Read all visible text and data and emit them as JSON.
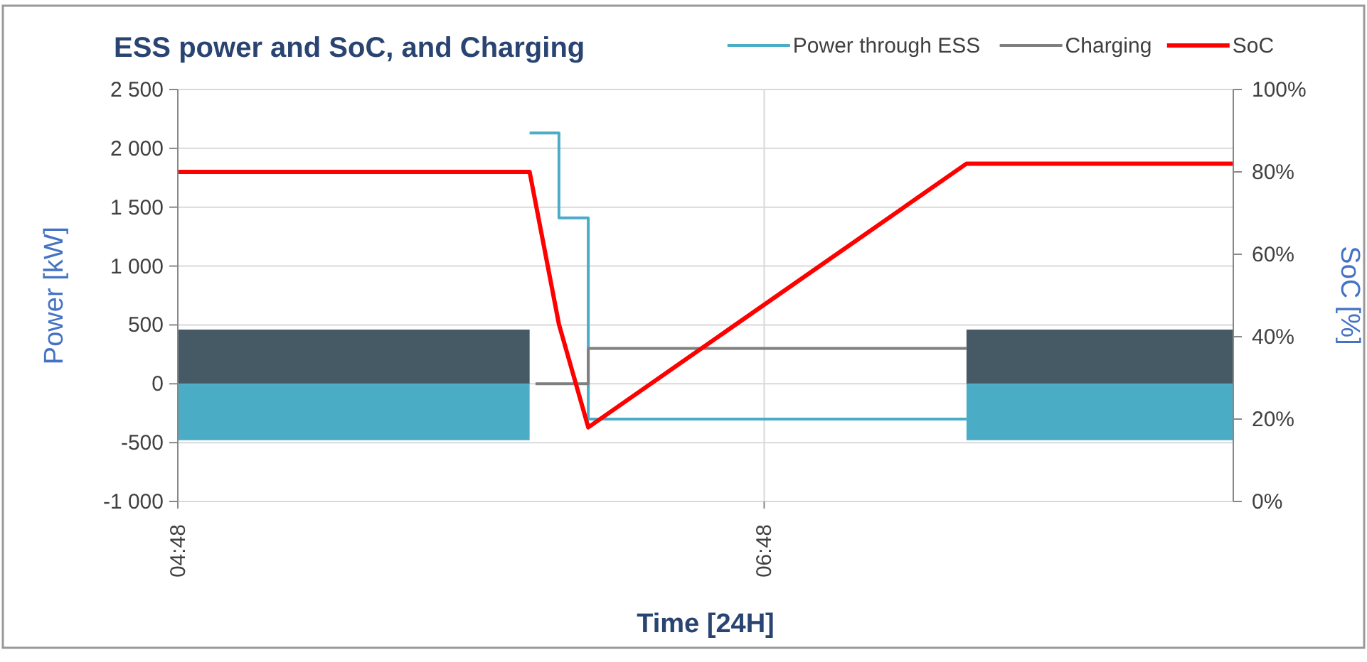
{
  "chart_data": {
    "type": "line",
    "title": "ESS power and SoC, and Charging",
    "xlabel": "Time [24H]",
    "ylabel": "Power [kW]",
    "y2label": "SoC [%]",
    "xlim": [
      4.8,
      8.4
    ],
    "xticks": [
      {
        "value": 4.8,
        "label": "04:48"
      },
      {
        "value": 6.8,
        "label": "06:48"
      }
    ],
    "ylim": [
      -1000,
      2500
    ],
    "yticks": [
      {
        "value": -1000,
        "label": "-1 000"
      },
      {
        "value": -500,
        "label": "-500"
      },
      0,
      500,
      {
        "value": 1000,
        "label": "1 000"
      },
      {
        "value": 1500,
        "label": "1 500"
      },
      {
        "value": 2000,
        "label": "2 000"
      },
      {
        "value": 2500,
        "label": "2 500"
      }
    ],
    "y2lim": [
      0,
      100
    ],
    "y2ticks": [
      {
        "value": 0,
        "label": "0%"
      },
      {
        "value": 20,
        "label": "20%"
      },
      {
        "value": 40,
        "label": "40%"
      },
      {
        "value": 60,
        "label": "60%"
      },
      {
        "value": 80,
        "label": "80%"
      },
      {
        "value": 100,
        "label": "100%"
      }
    ],
    "grid": true,
    "legend": "top right",
    "series": [
      {
        "type": "area",
        "color": "#455a64",
        "x": [
          4.8,
          6.0
        ],
        "values": [
          460,
          460
        ]
      },
      {
        "type": "area",
        "color": "#455a64",
        "x": [
          7.49,
          8.4
        ],
        "values": [
          460,
          460
        ]
      },
      {
        "type": "area",
        "color": "#4bacc6",
        "x": [
          4.8,
          6.0
        ],
        "values": [
          -480,
          -480
        ]
      },
      {
        "type": "area",
        "color": "#4bacc6",
        "x": [
          7.49,
          8.4
        ],
        "values": [
          -480,
          -480
        ]
      },
      {
        "name": "Power through ESS",
        "type": "step",
        "color": "#4bacc6",
        "x": [
          6.0,
          6.1,
          6.2,
          7.49
        ],
        "values": [
          2130,
          1410,
          -300,
          -300
        ]
      },
      {
        "name": "Charging",
        "type": "step",
        "color": "#7f7f7f",
        "x": [
          6.02,
          6.2,
          7.49
        ],
        "values": [
          0,
          300,
          300
        ]
      },
      {
        "name": "SoC",
        "axis": "y2",
        "color": "#ff0000",
        "x": [
          4.8,
          6.0,
          6.1,
          6.2,
          7.49,
          8.4
        ],
        "values": [
          80,
          80,
          43,
          18,
          82,
          82
        ]
      }
    ]
  }
}
